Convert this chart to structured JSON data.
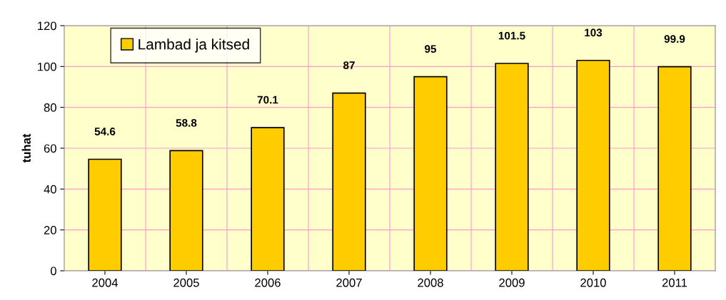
{
  "chart_data": {
    "type": "bar",
    "ylabel": "tuhat",
    "categories": [
      "2004",
      "2005",
      "2006",
      "2007",
      "2008",
      "2009",
      "2010",
      "2011"
    ],
    "series": [
      {
        "name": "Lambad ja kitsed",
        "color": "#ffcc00",
        "values": [
          54.6,
          58.8,
          70.1,
          87,
          95,
          101.5,
          103,
          99.9
        ]
      }
    ],
    "ylim": [
      0,
      120
    ],
    "yticks": [
      0,
      20,
      40,
      60,
      80,
      100,
      120
    ],
    "grid": true,
    "legend": "top left",
    "data_labels": true
  }
}
